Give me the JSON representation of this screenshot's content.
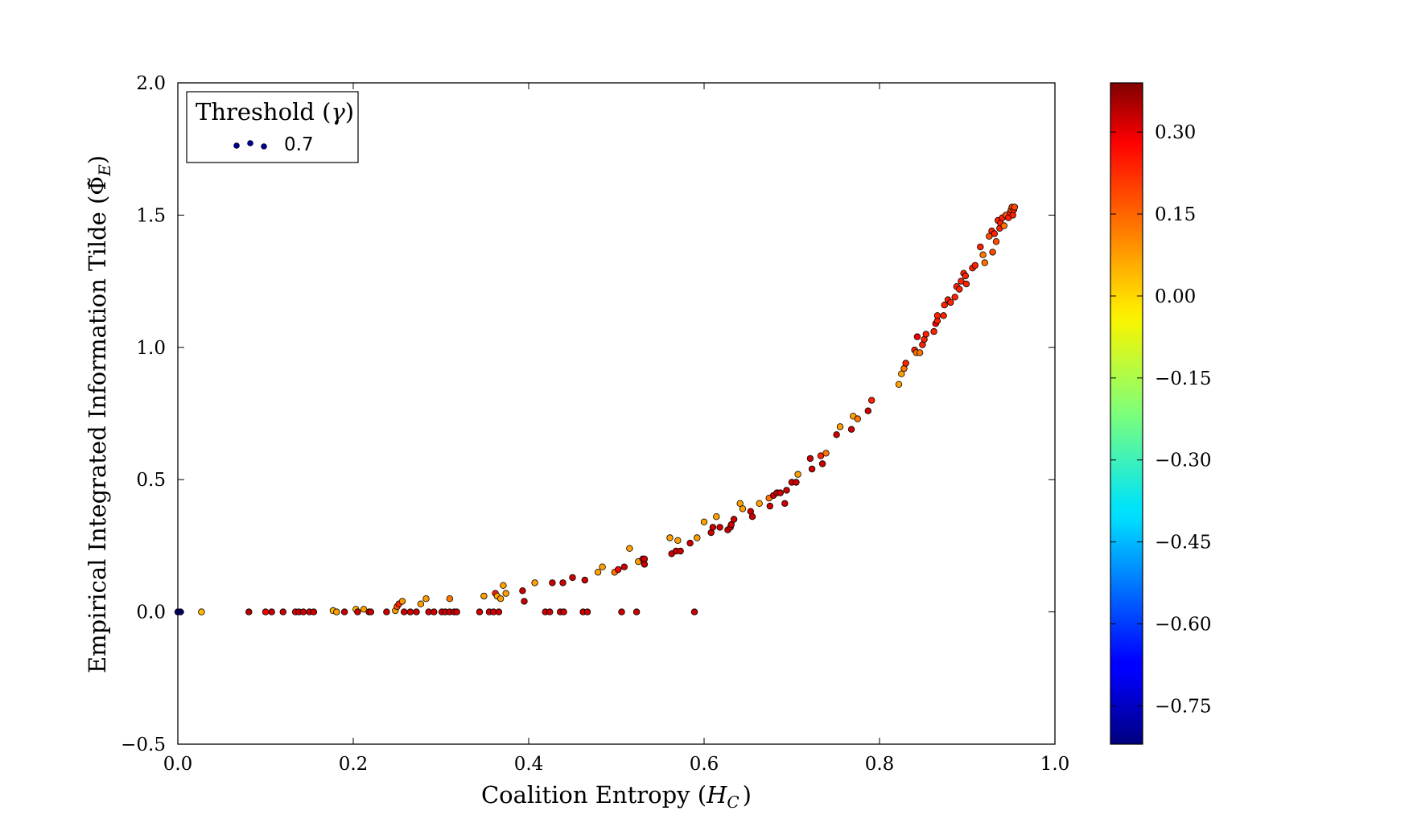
{
  "chart_data": {
    "type": "scatter",
    "title": "",
    "xlabel": "Coalition Entropy (",
    "xlabel_math": "H",
    "xlabel_sub": "C",
    "xlabel_end": ")",
    "ylabel": "Empirical Integrated Information Tilde (",
    "ylabel_math": "Φ̃",
    "ylabel_sub": "E",
    "ylabel_end": ")",
    "xlim": [
      0.0,
      1.0
    ],
    "ylim": [
      -0.5,
      2.0
    ],
    "x_ticks": [
      "0.0",
      "0.2",
      "0.4",
      "0.6",
      "0.8",
      "1.0"
    ],
    "y_ticks": [
      "−0.5",
      "0.0",
      "0.5",
      "1.0",
      "1.5",
      "2.0"
    ],
    "legend": {
      "position": "top-left",
      "title": "Threshold (",
      "title_math": "γ",
      "title_end": ")",
      "entries": [
        {
          "label": "0.7",
          "color": "#00008f"
        }
      ]
    },
    "colorbar": {
      "colormap": "jet",
      "range": [
        -0.82,
        0.39
      ],
      "ticks": [
        "0.30",
        "0.15",
        "0.00",
        "−0.15",
        "−0.30",
        "−0.45",
        "−0.60",
        "−0.75"
      ]
    },
    "points": [
      [
        0.0,
        0.0,
        -0.82
      ],
      [
        0.003,
        0.0,
        -0.82
      ],
      [
        0.027,
        0.0,
        0.02
      ],
      [
        0.081,
        0.0,
        0.33
      ],
      [
        0.1,
        0.0,
        0.25
      ],
      [
        0.107,
        0.0,
        0.3
      ],
      [
        0.12,
        0.0,
        0.3
      ],
      [
        0.134,
        0.0,
        0.27
      ],
      [
        0.138,
        0.0,
        0.3
      ],
      [
        0.143,
        0.0,
        0.3
      ],
      [
        0.15,
        0.0,
        0.3
      ],
      [
        0.155,
        0.0,
        0.3
      ],
      [
        0.177,
        0.005,
        0.02
      ],
      [
        0.181,
        0.0,
        0.05
      ],
      [
        0.19,
        0.0,
        0.3
      ],
      [
        0.203,
        0.01,
        0.02
      ],
      [
        0.205,
        0.0,
        0.3
      ],
      [
        0.212,
        0.01,
        0.05
      ],
      [
        0.218,
        0.0,
        0.3
      ],
      [
        0.22,
        0.0,
        0.3
      ],
      [
        0.238,
        0.0,
        0.3
      ],
      [
        0.248,
        0.005,
        0.05
      ],
      [
        0.25,
        0.02,
        0.15
      ],
      [
        0.252,
        0.03,
        0.2
      ],
      [
        0.256,
        0.04,
        0.06
      ],
      [
        0.258,
        0.0,
        0.3
      ],
      [
        0.265,
        0.0,
        0.3
      ],
      [
        0.272,
        0.0,
        0.3
      ],
      [
        0.277,
        0.03,
        0.05
      ],
      [
        0.283,
        0.05,
        0.06
      ],
      [
        0.286,
        0.0,
        0.3
      ],
      [
        0.292,
        0.0,
        0.3
      ],
      [
        0.301,
        0.0,
        0.3
      ],
      [
        0.305,
        0.0,
        0.3
      ],
      [
        0.31,
        0.05,
        0.1
      ],
      [
        0.31,
        0.0,
        0.3
      ],
      [
        0.315,
        0.0,
        0.3
      ],
      [
        0.318,
        0.0,
        0.3
      ],
      [
        0.344,
        0.0,
        0.3
      ],
      [
        0.349,
        0.06,
        0.05
      ],
      [
        0.355,
        0.0,
        0.3
      ],
      [
        0.36,
        0.0,
        0.3
      ],
      [
        0.362,
        0.07,
        0.2
      ],
      [
        0.364,
        0.06,
        0.05
      ],
      [
        0.366,
        0.0,
        0.3
      ],
      [
        0.368,
        0.05,
        0.06
      ],
      [
        0.371,
        0.1,
        0.05
      ],
      [
        0.374,
        0.07,
        0.05
      ],
      [
        0.393,
        0.08,
        0.3
      ],
      [
        0.395,
        0.04,
        0.3
      ],
      [
        0.407,
        0.11,
        0.05
      ],
      [
        0.419,
        0.0,
        0.3
      ],
      [
        0.424,
        0.0,
        0.3
      ],
      [
        0.427,
        0.11,
        0.3
      ],
      [
        0.436,
        0.0,
        0.3
      ],
      [
        0.44,
        0.0,
        0.3
      ],
      [
        0.439,
        0.11,
        0.3
      ],
      [
        0.45,
        0.13,
        0.3
      ],
      [
        0.462,
        0.0,
        0.3
      ],
      [
        0.467,
        0.0,
        0.3
      ],
      [
        0.464,
        0.12,
        0.3
      ],
      [
        0.479,
        0.15,
        0.05
      ],
      [
        0.484,
        0.17,
        0.05
      ],
      [
        0.498,
        0.15,
        0.1
      ],
      [
        0.502,
        0.16,
        0.25
      ],
      [
        0.506,
        0.0,
        0.3
      ],
      [
        0.509,
        0.17,
        0.3
      ],
      [
        0.515,
        0.24,
        0.05
      ],
      [
        0.523,
        0.0,
        0.3
      ],
      [
        0.525,
        0.19,
        0.05
      ],
      [
        0.53,
        0.2,
        0.3
      ],
      [
        0.532,
        0.18,
        0.3
      ],
      [
        0.532,
        0.2,
        0.3
      ],
      [
        0.561,
        0.28,
        0.05
      ],
      [
        0.563,
        0.22,
        0.3
      ],
      [
        0.568,
        0.23,
        0.3
      ],
      [
        0.57,
        0.27,
        0.05
      ],
      [
        0.573,
        0.23,
        0.3
      ],
      [
        0.584,
        0.26,
        0.3
      ],
      [
        0.589,
        0.0,
        0.3
      ],
      [
        0.592,
        0.28,
        0.05
      ],
      [
        0.6,
        0.34,
        0.05
      ],
      [
        0.608,
        0.3,
        0.3
      ],
      [
        0.61,
        0.32,
        0.3
      ],
      [
        0.614,
        0.36,
        0.05
      ],
      [
        0.618,
        0.32,
        0.3
      ],
      [
        0.627,
        0.31,
        0.3
      ],
      [
        0.63,
        0.32,
        0.3
      ],
      [
        0.631,
        0.33,
        0.3
      ],
      [
        0.634,
        0.35,
        0.3
      ],
      [
        0.641,
        0.41,
        0.05
      ],
      [
        0.644,
        0.39,
        0.05
      ],
      [
        0.653,
        0.38,
        0.3
      ],
      [
        0.655,
        0.36,
        0.3
      ],
      [
        0.663,
        0.41,
        0.05
      ],
      [
        0.674,
        0.43,
        0.1
      ],
      [
        0.675,
        0.4,
        0.3
      ],
      [
        0.679,
        0.44,
        0.3
      ],
      [
        0.683,
        0.45,
        0.3
      ],
      [
        0.687,
        0.45,
        0.3
      ],
      [
        0.692,
        0.41,
        0.3
      ],
      [
        0.694,
        0.46,
        0.3
      ],
      [
        0.7,
        0.49,
        0.3
      ],
      [
        0.705,
        0.49,
        0.3
      ],
      [
        0.707,
        0.52,
        0.05
      ],
      [
        0.721,
        0.58,
        0.3
      ],
      [
        0.723,
        0.54,
        0.3
      ],
      [
        0.733,
        0.59,
        0.2
      ],
      [
        0.735,
        0.56,
        0.3
      ],
      [
        0.739,
        0.6,
        0.1
      ],
      [
        0.751,
        0.67,
        0.3
      ],
      [
        0.755,
        0.7,
        0.05
      ],
      [
        0.768,
        0.69,
        0.3
      ],
      [
        0.77,
        0.74,
        0.05
      ],
      [
        0.775,
        0.73,
        0.1
      ],
      [
        0.787,
        0.76,
        0.3
      ],
      [
        0.791,
        0.8,
        0.2
      ],
      [
        0.822,
        0.86,
        0.05
      ],
      [
        0.825,
        0.9,
        0.05
      ],
      [
        0.828,
        0.92,
        0.1
      ],
      [
        0.83,
        0.94,
        0.2
      ],
      [
        0.84,
        0.99,
        0.2
      ],
      [
        0.842,
        0.98,
        0.1
      ],
      [
        0.843,
        1.04,
        0.25
      ],
      [
        0.846,
        0.98,
        0.1
      ],
      [
        0.849,
        1.01,
        0.2
      ],
      [
        0.851,
        1.03,
        0.2
      ],
      [
        0.853,
        1.05,
        0.2
      ],
      [
        0.862,
        1.06,
        0.2
      ],
      [
        0.864,
        1.09,
        0.25
      ],
      [
        0.866,
        1.1,
        0.2
      ],
      [
        0.866,
        1.12,
        0.2
      ],
      [
        0.873,
        1.12,
        0.2
      ],
      [
        0.874,
        1.16,
        0.2
      ],
      [
        0.878,
        1.18,
        0.2
      ],
      [
        0.881,
        1.17,
        0.2
      ],
      [
        0.886,
        1.19,
        0.2
      ],
      [
        0.888,
        1.23,
        0.2
      ],
      [
        0.891,
        1.22,
        0.2
      ],
      [
        0.893,
        1.25,
        0.2
      ],
      [
        0.896,
        1.28,
        0.2
      ],
      [
        0.898,
        1.27,
        0.2
      ],
      [
        0.899,
        1.24,
        0.2
      ],
      [
        0.906,
        1.3,
        0.2
      ],
      [
        0.909,
        1.31,
        0.2
      ],
      [
        0.915,
        1.38,
        0.2
      ],
      [
        0.918,
        1.35,
        0.1
      ],
      [
        0.92,
        1.32,
        0.1
      ],
      [
        0.925,
        1.42,
        0.15
      ],
      [
        0.928,
        1.44,
        0.2
      ],
      [
        0.929,
        1.36,
        0.15
      ],
      [
        0.931,
        1.43,
        0.2
      ],
      [
        0.933,
        1.4,
        0.15
      ],
      [
        0.935,
        1.48,
        0.2
      ],
      [
        0.937,
        1.45,
        0.2
      ],
      [
        0.938,
        1.47,
        0.2
      ],
      [
        0.94,
        1.49,
        0.2
      ],
      [
        0.942,
        1.46,
        0.1
      ],
      [
        0.944,
        1.5,
        0.15
      ],
      [
        0.947,
        1.49,
        0.2
      ],
      [
        0.949,
        1.51,
        0.2
      ],
      [
        0.95,
        1.52,
        0.15
      ],
      [
        0.951,
        1.53,
        0.15
      ],
      [
        0.952,
        1.5,
        0.2
      ],
      [
        0.953,
        1.52,
        0.2
      ],
      [
        0.954,
        1.53,
        0.15
      ]
    ]
  }
}
